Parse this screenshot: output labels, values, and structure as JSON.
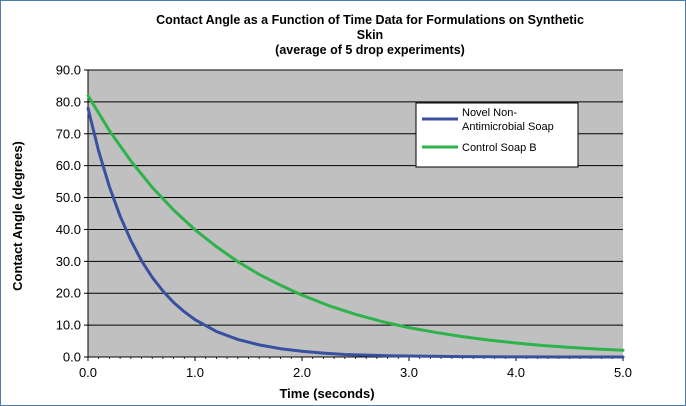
{
  "chart_data": {
    "type": "line",
    "title_lines": [
      "Contact Angle as a Function of Time Data for Formulations on Synthetic",
      "Skin",
      "(average of 5 drop experiments)"
    ],
    "xlabel": "Time (seconds)",
    "ylabel": "Contact Angle (degrees)",
    "xlim": [
      0,
      5
    ],
    "ylim": [
      0,
      90
    ],
    "x_ticks": [
      "0.0",
      "1.0",
      "2.0",
      "3.0",
      "4.0",
      "5.0"
    ],
    "y_ticks": [
      "0.0",
      "10.0",
      "20.0",
      "30.0",
      "40.0",
      "50.0",
      "60.0",
      "70.0",
      "80.0",
      "90.0"
    ],
    "grid": true,
    "legend_position": "top-right",
    "series": [
      {
        "name_lines": [
          "Novel Non-",
          "Antimicrobial Soap"
        ],
        "color": "#3850a0",
        "x": [
          0,
          0.1,
          0.2,
          0.3,
          0.4,
          0.5,
          0.6,
          0.7,
          0.8,
          0.9,
          1.0,
          1.2,
          1.4,
          1.6,
          1.8,
          2.0,
          2.2,
          2.4,
          2.6,
          2.8,
          3.0,
          3.5,
          4.0,
          4.5,
          5.0
        ],
        "y": [
          78,
          64.5,
          53.4,
          44.2,
          36.6,
          30.2,
          25.0,
          20.7,
          17.1,
          14.2,
          11.7,
          8.0,
          5.5,
          3.8,
          2.6,
          1.8,
          1.2,
          0.8,
          0.6,
          0.4,
          0.3,
          0.1,
          0.05,
          0.02,
          0
        ]
      },
      {
        "name_lines": [
          "Control Soap B"
        ],
        "color": "#2db34a",
        "x": [
          0,
          0.2,
          0.4,
          0.6,
          0.8,
          1.0,
          1.2,
          1.4,
          1.6,
          1.8,
          2.0,
          2.25,
          2.5,
          2.75,
          3.0,
          3.25,
          3.5,
          3.75,
          4.0,
          4.25,
          4.5,
          4.75,
          5.0
        ],
        "y": [
          82,
          71.0,
          61.5,
          53.2,
          46.1,
          39.9,
          34.6,
          29.9,
          25.9,
          22.5,
          19.4,
          16.1,
          13.4,
          11.1,
          9.2,
          7.7,
          6.4,
          5.3,
          4.4,
          3.6,
          3.0,
          2.5,
          2.1
        ]
      }
    ]
  },
  "colors": {
    "plot_background": "#c0c0c0",
    "gridline": "#000000",
    "frame_border": "#4a7db5"
  }
}
